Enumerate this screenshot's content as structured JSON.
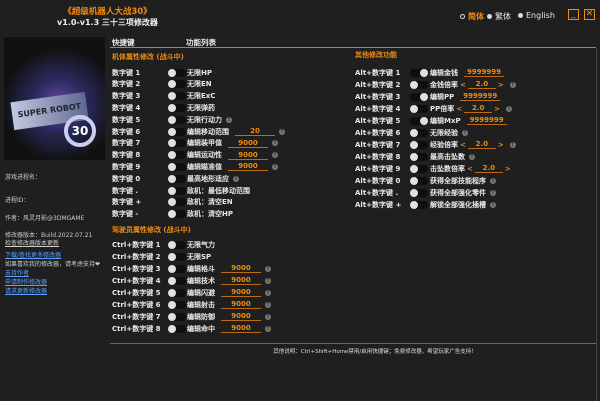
{
  "header": {
    "title": "《超级机器人大战30》",
    "subtitle": "v1.0-v1.3 三十三项修改器",
    "languages": [
      {
        "label": "简体",
        "selected": true
      },
      {
        "label": "繁体",
        "selected": false
      },
      {
        "label": "English",
        "selected": false
      }
    ],
    "minimize_icon": "minimize-icon",
    "close_icon": "close-icon"
  },
  "sidebar": {
    "game_process": "游戏进程名：",
    "process_id": "进程ID：",
    "author": "作者：风灵月影@3DMGAME",
    "version": "修改器版本：Build.2022.07.21",
    "check_update": "检查修改器版本更新",
    "download_more": "下载/查找更多修改器",
    "support_text": "如果喜欢我的修改器，请考虑支持❤",
    "support_author": "支持作者",
    "request_trainer": "申请制作修改器",
    "request_update": "请求更新修改器"
  },
  "columns": {
    "hotkey": "快捷键",
    "features": "功能列表"
  },
  "sections": {
    "mech": {
      "title": "机体属性修改 (战斗中)",
      "rows": [
        {
          "key": "数字键 1",
          "label": "无限HP"
        },
        {
          "key": "数字键 2",
          "label": "无限EN"
        },
        {
          "key": "数字键 3",
          "label": "无限ExC"
        },
        {
          "key": "数字键 4",
          "label": "无限弹药"
        },
        {
          "key": "数字键 5",
          "label": "无限行动力",
          "info": true
        },
        {
          "key": "数字键 6",
          "label": "编辑移动范围",
          "value": "20",
          "info": true
        },
        {
          "key": "数字键 7",
          "label": "编辑装甲值",
          "value": "9000",
          "info": true
        },
        {
          "key": "数字键 8",
          "label": "编辑运动性",
          "value": "9000",
          "info": true
        },
        {
          "key": "数字键 9",
          "label": "编辑瞄准值",
          "value": "9000",
          "info": true
        },
        {
          "key": "数字键 0",
          "label": "最高地形适应",
          "info": true
        },
        {
          "key": "数字键 .",
          "label": "敌机：最低移动范围"
        },
        {
          "key": "数字键 +",
          "label": "敌机：清空EN"
        },
        {
          "key": "数字键 -",
          "label": "敌机：清空HP"
        }
      ]
    },
    "pilot": {
      "title": "驾驶员属性修改 (战斗中)",
      "rows": [
        {
          "key": "Ctrl+数字键 1",
          "label": "无限气力"
        },
        {
          "key": "Ctrl+数字键 2",
          "label": "无限SP"
        },
        {
          "key": "Ctrl+数字键 3",
          "label": "编辑格斗",
          "value": "9000",
          "info": true
        },
        {
          "key": "Ctrl+数字键 4",
          "label": "编辑技术",
          "value": "9000",
          "info": true
        },
        {
          "key": "Ctrl+数字键 5",
          "label": "编辑闪避",
          "value": "9000",
          "info": true
        },
        {
          "key": "Ctrl+数字键 6",
          "label": "编辑射击",
          "value": "9000",
          "info": true
        },
        {
          "key": "Ctrl+数字键 7",
          "label": "编辑防御",
          "value": "9000",
          "info": true
        },
        {
          "key": "Ctrl+数字键 8",
          "label": "编辑命中",
          "value": "9000",
          "info": true
        }
      ]
    },
    "other": {
      "title": "其他修改功能",
      "rows": [
        {
          "key": "Alt+数字键 1",
          "label": "编辑金钱",
          "value": "9999999",
          "on": true
        },
        {
          "key": "Alt+数字键 2",
          "label": "金钱倍率",
          "stepper": "2.0",
          "info": true
        },
        {
          "key": "Alt+数字键 3",
          "label": "编辑PP",
          "value": "9999999",
          "on": true
        },
        {
          "key": "Alt+数字键 4",
          "label": "PP倍率",
          "stepper": "2.0",
          "info": true
        },
        {
          "key": "Alt+数字键 5",
          "label": "编辑MxP",
          "value": "9999999",
          "on": true
        },
        {
          "key": "Alt+数字键 6",
          "label": "无限经验",
          "info": true
        },
        {
          "key": "Alt+数字键 7",
          "label": "经验倍率",
          "stepper": "2.0",
          "info": true
        },
        {
          "key": "Alt+数字键 8",
          "label": "最高击坠数",
          "info": true
        },
        {
          "key": "Alt+数字键 9",
          "label": "击坠数倍率",
          "stepper": "2.0"
        },
        {
          "key": "Alt+数字键 0",
          "label": "获得全部技能程序",
          "info": true
        },
        {
          "key": "Alt+数字键 .",
          "label": "获得全部强化零件",
          "info": true
        },
        {
          "key": "Alt+数字键 +",
          "label": "解锁全部强化插槽",
          "info": true
        }
      ]
    }
  },
  "footer": "其他说明：Ctrl+Shift+Home禁用/启用快捷键；免费修改器，希望玩家广告支持！",
  "colors": {
    "accent": "#f08a10",
    "link": "#5aa0ff",
    "background": "#1f1f1f"
  }
}
